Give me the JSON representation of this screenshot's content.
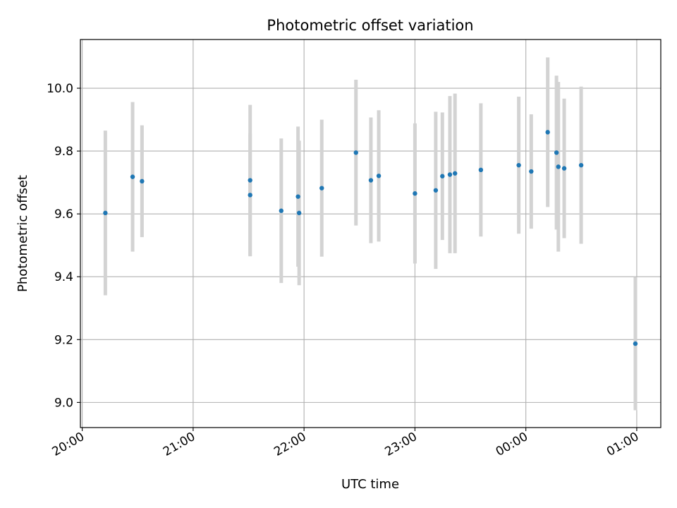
{
  "chart_data": {
    "type": "scatter",
    "title": "Photometric offset variation",
    "xlabel": "UTC time",
    "ylabel": "Photometric offset",
    "x_tick_labels": [
      "20:00",
      "21:00",
      "22:00",
      "23:00",
      "00:00",
      "01:00"
    ],
    "y_tick_labels": [
      "9.0",
      "9.2",
      "9.4",
      "9.6",
      "9.8",
      "10.0"
    ],
    "y_ticks": [
      9.0,
      9.2,
      9.4,
      9.6,
      9.8,
      10.0
    ],
    "xlim": [
      "2024-01-01T19:59",
      "2024-01-02T01:13"
    ],
    "ylim": [
      8.92,
      10.155
    ],
    "grid": true,
    "point_color": "#1f77b4",
    "errorbar_color": "#d3d3d3",
    "points": [
      {
        "x": "2024-01-01T20:12:30",
        "y": 9.603,
        "err": 0.262
      },
      {
        "x": "2024-01-01T20:27:15",
        "y": 9.718,
        "err": 0.238
      },
      {
        "x": "2024-01-01T20:32:20",
        "y": 9.704,
        "err": 0.178
      },
      {
        "x": "2024-01-01T21:30:50",
        "y": 9.707,
        "err": 0.24
      },
      {
        "x": "2024-01-01T21:30:50",
        "y": 9.66,
        "err": 0.195
      },
      {
        "x": "2024-01-01T21:47:40",
        "y": 9.61,
        "err": 0.23
      },
      {
        "x": "2024-01-01T21:56:45",
        "y": 9.655,
        "err": 0.223
      },
      {
        "x": "2024-01-01T21:57:20",
        "y": 9.603,
        "err": 0.23
      },
      {
        "x": "2024-01-01T22:09:35",
        "y": 9.682,
        "err": 0.218
      },
      {
        "x": "2024-01-01T22:28:05",
        "y": 9.795,
        "err": 0.232
      },
      {
        "x": "2024-01-01T22:36:10",
        "y": 9.707,
        "err": 0.2
      },
      {
        "x": "2024-01-01T22:40:25",
        "y": 9.721,
        "err": 0.209
      },
      {
        "x": "2024-01-01T23:00:00",
        "y": 9.665,
        "err": 0.223
      },
      {
        "x": "2024-01-01T23:11:15",
        "y": 9.675,
        "err": 0.25
      },
      {
        "x": "2024-01-01T23:14:50",
        "y": 9.72,
        "err": 0.203
      },
      {
        "x": "2024-01-01T23:18:55",
        "y": 9.725,
        "err": 0.25
      },
      {
        "x": "2024-01-01T23:21:40",
        "y": 9.729,
        "err": 0.254
      },
      {
        "x": "2024-01-01T23:35:40",
        "y": 9.74,
        "err": 0.212
      },
      {
        "x": "2024-01-01T23:56:10",
        "y": 9.755,
        "err": 0.218
      },
      {
        "x": "2024-01-02T00:02:55",
        "y": 9.735,
        "err": 0.182
      },
      {
        "x": "2024-01-02T00:11:50",
        "y": 9.86,
        "err": 0.238
      },
      {
        "x": "2024-01-02T00:16:35",
        "y": 9.795,
        "err": 0.245
      },
      {
        "x": "2024-01-02T00:17:35",
        "y": 9.75,
        "err": 0.27
      },
      {
        "x": "2024-01-02T00:20:45",
        "y": 9.745,
        "err": 0.222
      },
      {
        "x": "2024-01-02T00:29:55",
        "y": 9.755,
        "err": 0.25
      },
      {
        "x": "2024-01-02T00:59:15",
        "y": 9.187,
        "err": 0.212
      }
    ]
  }
}
